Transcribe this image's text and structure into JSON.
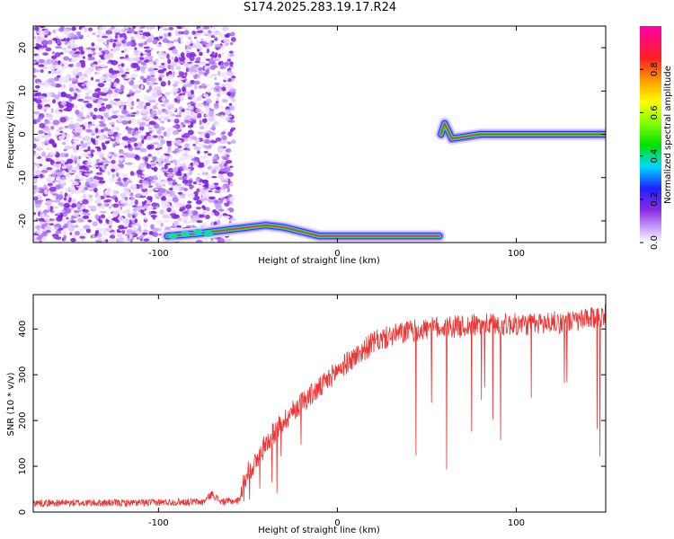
{
  "title": "S174.2025.283.19.17.R24",
  "chart_data": [
    {
      "type": "heatmap",
      "xlabel": "Height of straight line (km)",
      "ylabel": "Frequency (Hz)",
      "xlim": [
        -170,
        150
      ],
      "ylim": [
        -25,
        25
      ],
      "xticks": [
        -100,
        0,
        100
      ],
      "yticks": [
        -20,
        -10,
        0,
        10,
        20
      ],
      "colorbar": {
        "label": "Normalized spectral amplitude",
        "range": [
          0,
          1
        ],
        "ticks": [
          0.0,
          0.2,
          0.4,
          0.6,
          0.8
        ],
        "tick_labels": [
          "0.0",
          "0.2",
          "0.4",
          "0.6",
          "0.8"
        ]
      },
      "features": {
        "noise_region_x": [
          -170,
          -58
        ],
        "signal_track": [
          {
            "x": -95,
            "y": -23.5
          },
          {
            "x": -80,
            "y": -23
          },
          {
            "x": -60,
            "y": -22
          },
          {
            "x": -50,
            "y": -21.5
          },
          {
            "x": -40,
            "y": -21
          },
          {
            "x": -30,
            "y": -21.5
          },
          {
            "x": -20,
            "y": -22.5
          },
          {
            "x": -10,
            "y": -23.5
          },
          {
            "x": 0,
            "y": -23.5
          },
          {
            "x": 20,
            "y": -23.5
          },
          {
            "x": 40,
            "y": -23.5
          },
          {
            "x": 57,
            "y": -23.5
          },
          {
            "x": 58,
            "y": 0
          },
          {
            "x": 60,
            "y": 2.5
          },
          {
            "x": 64,
            "y": -1
          },
          {
            "x": 80,
            "y": 0
          },
          {
            "x": 100,
            "y": 0
          },
          {
            "x": 120,
            "y": 0
          },
          {
            "x": 150,
            "y": 0
          }
        ]
      }
    },
    {
      "type": "line",
      "xlabel": "Height of straight line (km)",
      "ylabel": "SNR (10 * v/v)",
      "xlim": [
        -170,
        150
      ],
      "ylim": [
        0,
        475
      ],
      "xticks": [
        -100,
        0,
        100
      ],
      "yticks": [
        0,
        100,
        200,
        300,
        400
      ],
      "series": [
        {
          "color": "#ee3333",
          "x": [
            -170,
            -150,
            -130,
            -110,
            -90,
            -75,
            -70,
            -65,
            -55,
            -50,
            -45,
            -40,
            -30,
            -20,
            -10,
            0,
            10,
            20,
            30,
            40,
            50,
            60,
            70,
            80,
            90,
            100,
            110,
            120,
            130,
            140,
            150
          ],
          "values": [
            20,
            20,
            20,
            20,
            22,
            22,
            40,
            22,
            25,
            90,
            110,
            150,
            200,
            240,
            270,
            310,
            340,
            370,
            385,
            395,
            400,
            405,
            405,
            410,
            410,
            410,
            410,
            415,
            415,
            420,
            430
          ]
        }
      ]
    }
  ]
}
